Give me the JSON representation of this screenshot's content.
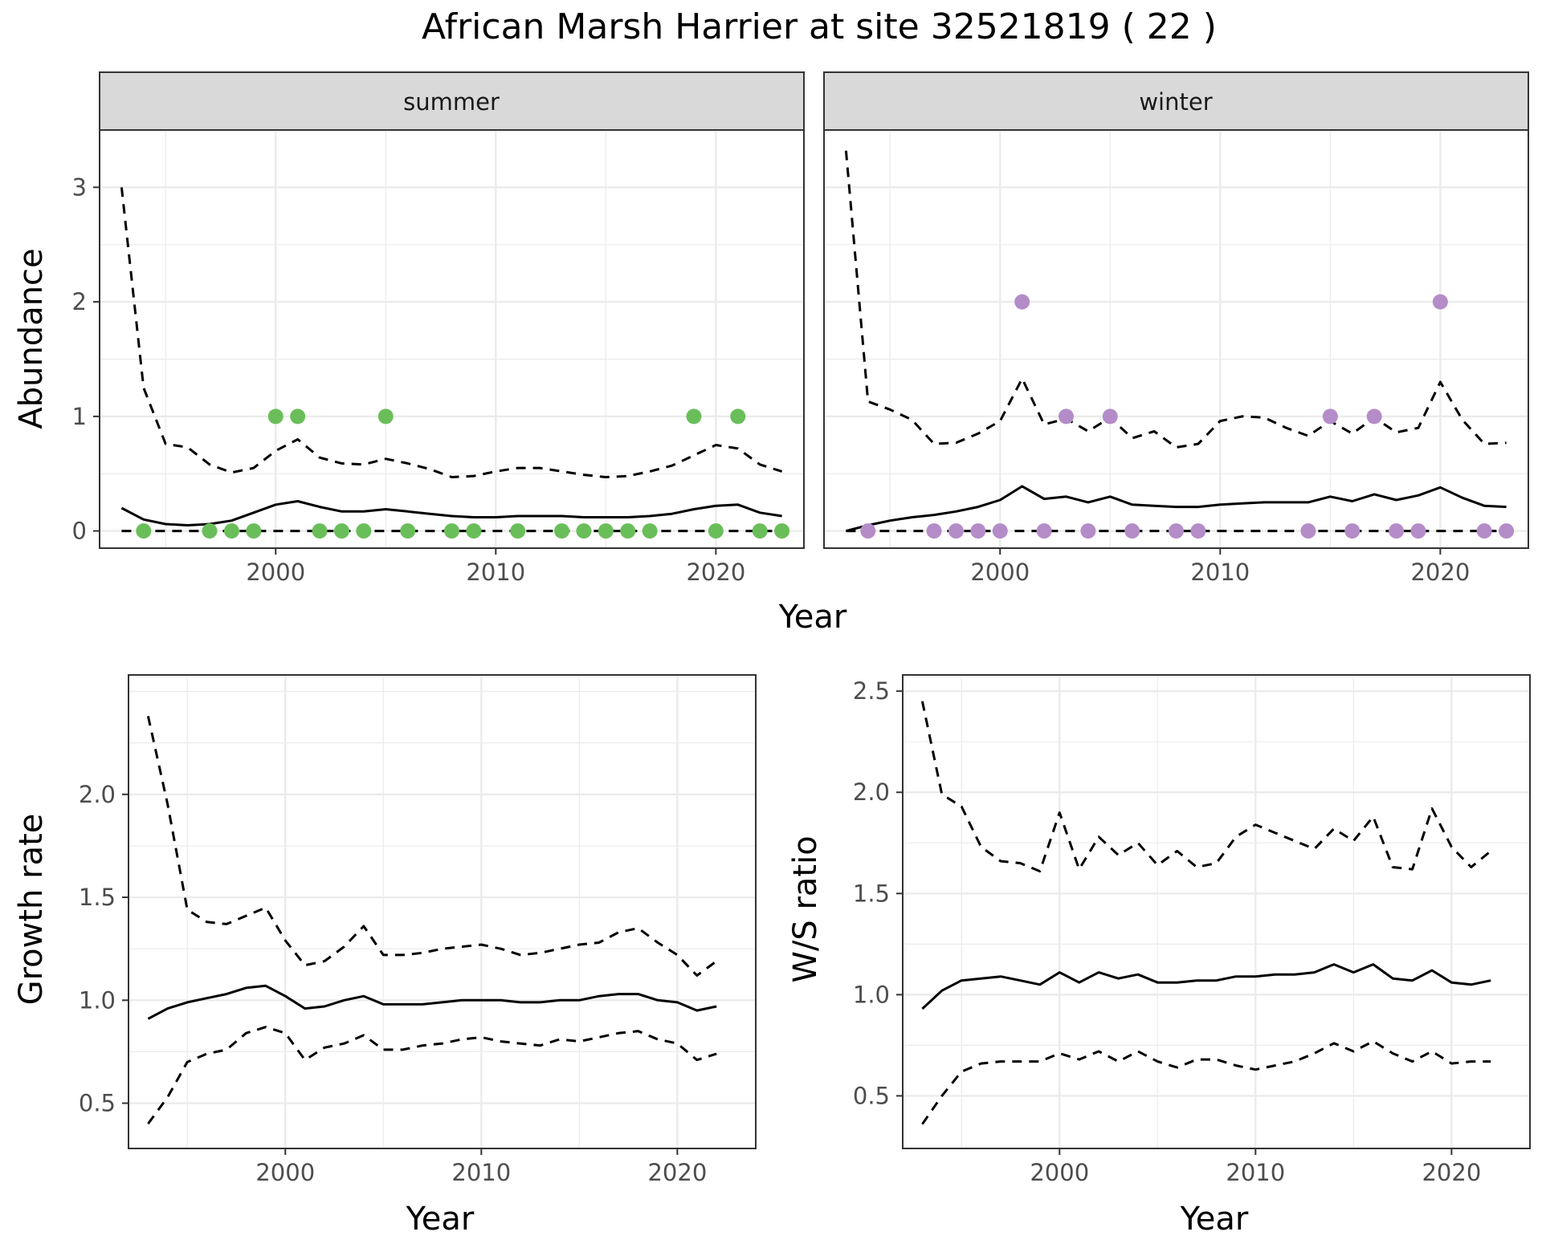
{
  "title": "African Marsh Harrier at site 32521819 ( 22 )",
  "colors": {
    "summer_points": "#6ABE5A",
    "winter_points": "#B48CC8",
    "lines": "#000000",
    "strip": "#D9D9D9",
    "grid": "#EBEBEB"
  },
  "chart_data": [
    {
      "type": "line",
      "facet": "summer",
      "xlabel": "Year",
      "ylabel": "Abundance",
      "xlim": [
        1992,
        2024
      ],
      "ylim": [
        -0.15,
        3.5
      ],
      "xticks": [
        2000,
        2010,
        2020
      ],
      "yticks": [
        0,
        1,
        2,
        3
      ],
      "grid": true,
      "x": [
        1993,
        1994,
        1995,
        1996,
        1997,
        1998,
        1999,
        2000,
        2001,
        2002,
        2003,
        2004,
        2005,
        2006,
        2007,
        2008,
        2009,
        2010,
        2011,
        2012,
        2013,
        2014,
        2015,
        2016,
        2017,
        2018,
        2019,
        2020,
        2021,
        2022,
        2023
      ],
      "series": [
        {
          "role": "estimate",
          "style": "solid",
          "values": [
            0.2,
            0.1,
            0.06,
            0.05,
            0.06,
            0.09,
            0.16,
            0.23,
            0.26,
            0.21,
            0.17,
            0.17,
            0.19,
            0.17,
            0.15,
            0.13,
            0.12,
            0.12,
            0.13,
            0.13,
            0.13,
            0.12,
            0.12,
            0.12,
            0.13,
            0.15,
            0.19,
            0.22,
            0.23,
            0.16,
            0.13
          ]
        },
        {
          "role": "upper",
          "style": "dashed",
          "values": [
            3.0,
            1.25,
            0.76,
            0.73,
            0.58,
            0.51,
            0.55,
            0.7,
            0.8,
            0.64,
            0.59,
            0.58,
            0.63,
            0.59,
            0.54,
            0.47,
            0.48,
            0.52,
            0.55,
            0.55,
            0.52,
            0.49,
            0.47,
            0.48,
            0.52,
            0.57,
            0.66,
            0.75,
            0.72,
            0.58,
            0.52
          ]
        },
        {
          "role": "lower",
          "style": "dashed",
          "values": [
            0,
            0,
            0,
            0,
            0,
            0,
            0,
            0,
            0,
            0,
            0,
            0,
            0,
            0,
            0,
            0,
            0,
            0,
            0,
            0,
            0,
            0,
            0,
            0,
            0,
            0,
            0,
            0,
            0,
            0,
            0
          ]
        }
      ],
      "points": {
        "x": [
          1994,
          1997,
          1998,
          1999,
          2000,
          2001,
          2002,
          2003,
          2004,
          2005,
          2006,
          2008,
          2009,
          2011,
          2013,
          2014,
          2015,
          2016,
          2017,
          2019,
          2020,
          2021,
          2022,
          2023
        ],
        "y": [
          0,
          0,
          0,
          0,
          1,
          1,
          0,
          0,
          0,
          1,
          0,
          0,
          0,
          0,
          0,
          0,
          0,
          0,
          0,
          1,
          0,
          1,
          0,
          0
        ]
      }
    },
    {
      "type": "line",
      "facet": "winter",
      "xlabel": "Year",
      "ylabel": "Abundance",
      "xlim": [
        1992,
        2024
      ],
      "ylim": [
        -0.15,
        3.5
      ],
      "xticks": [
        2000,
        2010,
        2020
      ],
      "yticks": [
        0,
        1,
        2,
        3
      ],
      "grid": true,
      "x": [
        1993,
        1994,
        1995,
        1996,
        1997,
        1998,
        1999,
        2000,
        2001,
        2002,
        2003,
        2004,
        2005,
        2006,
        2007,
        2008,
        2009,
        2010,
        2011,
        2012,
        2013,
        2014,
        2015,
        2016,
        2017,
        2018,
        2019,
        2020,
        2021,
        2022,
        2023
      ],
      "series": [
        {
          "role": "estimate",
          "style": "solid",
          "values": [
            0.0,
            0.05,
            0.09,
            0.12,
            0.14,
            0.17,
            0.21,
            0.27,
            0.39,
            0.28,
            0.3,
            0.25,
            0.3,
            0.23,
            0.22,
            0.21,
            0.21,
            0.23,
            0.24,
            0.25,
            0.25,
            0.25,
            0.3,
            0.26,
            0.32,
            0.27,
            0.31,
            0.38,
            0.29,
            0.22,
            0.21
          ]
        },
        {
          "role": "upper",
          "style": "dashed",
          "values": [
            3.32,
            1.13,
            1.06,
            0.97,
            0.76,
            0.77,
            0.85,
            0.96,
            1.33,
            0.93,
            0.98,
            0.87,
            0.99,
            0.81,
            0.87,
            0.73,
            0.76,
            0.96,
            1.0,
            0.99,
            0.9,
            0.83,
            0.96,
            0.85,
            0.99,
            0.86,
            0.9,
            1.3,
            0.97,
            0.76,
            0.77
          ]
        },
        {
          "role": "lower",
          "style": "dashed",
          "values": [
            0,
            0,
            0,
            0,
            0,
            0,
            0,
            0,
            0,
            0,
            0,
            0,
            0,
            0,
            0,
            0,
            0,
            0,
            0,
            0,
            0,
            0,
            0,
            0,
            0,
            0,
            0,
            0,
            0,
            0,
            0
          ]
        }
      ],
      "points": {
        "x": [
          1994,
          1997,
          1998,
          1999,
          2000,
          2001,
          2002,
          2003,
          2004,
          2005,
          2006,
          2008,
          2009,
          2014,
          2015,
          2016,
          2017,
          2018,
          2019,
          2020,
          2022,
          2023
        ],
        "y": [
          0,
          0,
          0,
          0,
          0,
          2,
          0,
          1,
          0,
          1,
          0,
          0,
          0,
          0,
          1,
          0,
          1,
          0,
          0,
          2,
          0,
          0
        ]
      }
    },
    {
      "type": "line",
      "xlabel": "Year",
      "ylabel": "Growth rate",
      "xlim": [
        1992,
        2024
      ],
      "ylim": [
        0.28,
        2.58
      ],
      "xticks": [
        2000,
        2010,
        2020
      ],
      "yticks": [
        0.5,
        1.0,
        1.5,
        2.0
      ],
      "ytick_labels": [
        "0.5",
        "1.0",
        "1.5",
        "2.0"
      ],
      "grid": true,
      "x": [
        1993,
        1994,
        1995,
        1996,
        1997,
        1998,
        1999,
        2000,
        2001,
        2002,
        2003,
        2004,
        2005,
        2006,
        2007,
        2008,
        2009,
        2010,
        2011,
        2012,
        2013,
        2014,
        2015,
        2016,
        2017,
        2018,
        2019,
        2020,
        2021,
        2022
      ],
      "series": [
        {
          "role": "estimate",
          "style": "solid",
          "values": [
            0.91,
            0.96,
            0.99,
            1.01,
            1.03,
            1.06,
            1.07,
            1.02,
            0.96,
            0.97,
            1.0,
            1.02,
            0.98,
            0.98,
            0.98,
            0.99,
            1.0,
            1.0,
            1.0,
            0.99,
            0.99,
            1.0,
            1.0,
            1.02,
            1.03,
            1.03,
            1.0,
            0.99,
            0.95,
            0.97
          ]
        },
        {
          "role": "upper",
          "style": "dashed",
          "values": [
            2.38,
            1.95,
            1.44,
            1.38,
            1.37,
            1.41,
            1.45,
            1.29,
            1.17,
            1.19,
            1.26,
            1.36,
            1.22,
            1.22,
            1.23,
            1.25,
            1.26,
            1.27,
            1.25,
            1.22,
            1.23,
            1.25,
            1.27,
            1.28,
            1.33,
            1.35,
            1.28,
            1.22,
            1.12,
            1.19
          ]
        },
        {
          "role": "lower",
          "style": "dashed",
          "values": [
            0.4,
            0.53,
            0.7,
            0.74,
            0.76,
            0.84,
            0.87,
            0.84,
            0.71,
            0.77,
            0.79,
            0.83,
            0.76,
            0.76,
            0.78,
            0.79,
            0.81,
            0.82,
            0.8,
            0.79,
            0.78,
            0.81,
            0.8,
            0.82,
            0.84,
            0.85,
            0.81,
            0.79,
            0.71,
            0.74
          ]
        }
      ]
    },
    {
      "type": "line",
      "xlabel": "Year",
      "ylabel": "W/S ratio",
      "xlim": [
        1992,
        2024
      ],
      "ylim": [
        0.24,
        2.58
      ],
      "xticks": [
        2000,
        2010,
        2020
      ],
      "yticks": [
        0.5,
        1.0,
        1.5,
        2.0,
        2.5
      ],
      "ytick_labels": [
        "0.5",
        "1.0",
        "1.5",
        "2.0",
        "2.5"
      ],
      "grid": true,
      "x": [
        1993,
        1994,
        1995,
        1996,
        1997,
        1998,
        1999,
        2000,
        2001,
        2002,
        2003,
        2004,
        2005,
        2006,
        2007,
        2008,
        2009,
        2010,
        2011,
        2012,
        2013,
        2014,
        2015,
        2016,
        2017,
        2018,
        2019,
        2020,
        2021,
        2022
      ],
      "series": [
        {
          "role": "estimate",
          "style": "solid",
          "values": [
            0.93,
            1.02,
            1.07,
            1.08,
            1.09,
            1.07,
            1.05,
            1.11,
            1.06,
            1.11,
            1.08,
            1.1,
            1.06,
            1.06,
            1.07,
            1.07,
            1.09,
            1.09,
            1.1,
            1.1,
            1.11,
            1.15,
            1.11,
            1.15,
            1.08,
            1.07,
            1.12,
            1.06,
            1.05,
            1.07
          ]
        },
        {
          "role": "upper",
          "style": "dashed",
          "values": [
            2.45,
            1.99,
            1.93,
            1.73,
            1.66,
            1.65,
            1.61,
            1.9,
            1.62,
            1.78,
            1.69,
            1.75,
            1.64,
            1.71,
            1.63,
            1.65,
            1.78,
            1.84,
            1.8,
            1.76,
            1.72,
            1.82,
            1.76,
            1.88,
            1.63,
            1.62,
            1.92,
            1.73,
            1.63,
            1.71
          ]
        },
        {
          "role": "lower",
          "style": "dashed",
          "values": [
            0.36,
            0.5,
            0.62,
            0.66,
            0.67,
            0.67,
            0.67,
            0.71,
            0.68,
            0.72,
            0.67,
            0.72,
            0.67,
            0.64,
            0.68,
            0.68,
            0.65,
            0.63,
            0.65,
            0.67,
            0.71,
            0.76,
            0.72,
            0.77,
            0.71,
            0.67,
            0.72,
            0.66,
            0.67,
            0.67
          ]
        }
      ]
    }
  ]
}
